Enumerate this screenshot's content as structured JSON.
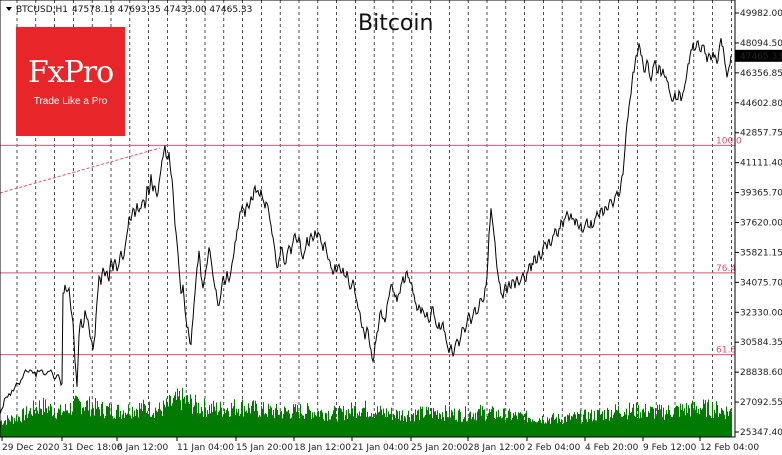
{
  "header": {
    "symbol": "BTCUSD,H1",
    "ohlc": "47578.18 47693.35 47433.00 47465.33"
  },
  "logo": {
    "brand": "FxPro",
    "tagline": "Trade Like a Pro"
  },
  "colors": {
    "price_line": "#000000",
    "volume": "#007a00",
    "fib_lines": "#e05070",
    "trend_line": "#e05070",
    "grid": "#000000",
    "current_price_box": "#000000",
    "logo_bg": "#e8262a"
  },
  "chart_data": {
    "type": "line",
    "title": "Bitcoin",
    "grid": true,
    "price_scale": "right",
    "ylim": [
      25347.4,
      49982.0
    ],
    "y_ticks": [
      "49982.00",
      "48094.50",
      "46356.85",
      "44602.80",
      "42857.75",
      "41111.40",
      "39365.70",
      "37620.00",
      "35821.15",
      "34075.70",
      "32330.00",
      "30584.35",
      "28838.60",
      "27092.55",
      "25347.40"
    ],
    "x_ticks": [
      "29 Dec 2020",
      "31 Dec 18:00",
      "6 Jan 12:00",
      "11 Jan 04:00",
      "15 Jan 20:00",
      "18 Jan 12:00",
      "21 Jan 04:00",
      "25 Jan 20:00",
      "28 Jan 12:00",
      "2 Feb 04:00",
      "4 Feb 20:00",
      "9 Feb 12:00",
      "12 Feb 04:00"
    ],
    "current_price": "47465.33",
    "fib_levels": [
      {
        "label": "100.0",
        "value": 42200
      },
      {
        "label": "76.4",
        "value": 34700
      },
      {
        "label": "61.8",
        "value": 29900
      }
    ],
    "price_points": [
      [
        0,
        26400
      ],
      [
        3,
        26800
      ],
      [
        6,
        27400
      ],
      [
        9,
        27600
      ],
      [
        12,
        27800
      ],
      [
        15,
        28000
      ],
      [
        18,
        28200
      ],
      [
        21,
        28400
      ],
      [
        24,
        28800
      ],
      [
        27,
        28900
      ],
      [
        30,
        29000
      ],
      [
        33,
        28800
      ],
      [
        36,
        28600
      ],
      [
        39,
        28900
      ],
      [
        42,
        29000
      ],
      [
        45,
        28700
      ],
      [
        48,
        28900
      ],
      [
        51,
        29000
      ],
      [
        54,
        28500
      ],
      [
        57,
        28700
      ],
      [
        60,
        28400
      ],
      [
        62,
        28200
      ],
      [
        63,
        33500
      ],
      [
        65,
        34000
      ],
      [
        67,
        33600
      ],
      [
        69,
        33800
      ],
      [
        71,
        32500
      ],
      [
        73,
        31800
      ],
      [
        75,
        29500
      ],
      [
        77,
        28000
      ],
      [
        79,
        31000
      ],
      [
        81,
        32000
      ],
      [
        83,
        31500
      ],
      [
        85,
        32500
      ],
      [
        87,
        32000
      ],
      [
        89,
        31500
      ],
      [
        91,
        30800
      ],
      [
        93,
        30200
      ],
      [
        95,
        31000
      ],
      [
        97,
        33000
      ],
      [
        99,
        34500
      ],
      [
        101,
        34000
      ],
      [
        103,
        35000
      ],
      [
        105,
        34500
      ],
      [
        107,
        34800
      ],
      [
        109,
        34200
      ],
      [
        111,
        35500
      ],
      [
        113,
        34800
      ],
      [
        115,
        35500
      ],
      [
        117,
        34800
      ],
      [
        119,
        35200
      ],
      [
        121,
        36000
      ],
      [
        123,
        35500
      ],
      [
        125,
        36200
      ],
      [
        127,
        37000
      ],
      [
        129,
        38000
      ],
      [
        131,
        37800
      ],
      [
        133,
        38500
      ],
      [
        135,
        38000
      ],
      [
        137,
        38800
      ],
      [
        139,
        38300
      ],
      [
        141,
        38500
      ],
      [
        143,
        39000
      ],
      [
        145,
        38500
      ],
      [
        147,
        39800
      ],
      [
        149,
        39300
      ],
      [
        151,
        40500
      ],
      [
        153,
        39500
      ],
      [
        155,
        39800
      ],
      [
        157,
        39200
      ],
      [
        159,
        40000
      ],
      [
        161,
        40800
      ],
      [
        163,
        41500
      ],
      [
        165,
        42200
      ],
      [
        167,
        41400
      ],
      [
        169,
        41800
      ],
      [
        171,
        40500
      ],
      [
        173,
        39500
      ],
      [
        175,
        37500
      ],
      [
        177,
        36500
      ],
      [
        179,
        35000
      ],
      [
        181,
        33500
      ],
      [
        183,
        34000
      ],
      [
        185,
        32500
      ],
      [
        187,
        31500
      ],
      [
        189,
        31000
      ],
      [
        191,
        30500
      ],
      [
        193,
        32000
      ],
      [
        195,
        33500
      ],
      [
        197,
        35000
      ],
      [
        199,
        36000
      ],
      [
        201,
        34500
      ],
      [
        203,
        33800
      ],
      [
        205,
        34500
      ],
      [
        207,
        35200
      ],
      [
        209,
        36200
      ],
      [
        211,
        35500
      ],
      [
        213,
        34500
      ],
      [
        215,
        33800
      ],
      [
        217,
        33200
      ],
      [
        219,
        32800
      ],
      [
        221,
        33500
      ],
      [
        223,
        34500
      ],
      [
        225,
        34000
      ],
      [
        227,
        34800
      ],
      [
        229,
        34200
      ],
      [
        231,
        34800
      ],
      [
        233,
        35500
      ],
      [
        235,
        36500
      ],
      [
        237,
        37200
      ],
      [
        239,
        37800
      ],
      [
        241,
        38300
      ],
      [
        243,
        38500
      ],
      [
        245,
        38000
      ],
      [
        247,
        38800
      ],
      [
        249,
        38500
      ],
      [
        251,
        39200
      ],
      [
        253,
        39000
      ],
      [
        255,
        39800
      ],
      [
        257,
        39500
      ],
      [
        259,
        39300
      ],
      [
        261,
        39600
      ],
      [
        263,
        39000
      ],
      [
        265,
        38500
      ],
      [
        267,
        38800
      ],
      [
        269,
        38200
      ],
      [
        271,
        37500
      ],
      [
        273,
        36800
      ],
      [
        275,
        36000
      ],
      [
        277,
        35000
      ],
      [
        279,
        35500
      ],
      [
        281,
        36200
      ],
      [
        283,
        35800
      ],
      [
        285,
        35200
      ],
      [
        287,
        35800
      ],
      [
        289,
        36300
      ],
      [
        291,
        35800
      ],
      [
        293,
        36500
      ],
      [
        295,
        37000
      ],
      [
        297,
        36500
      ],
      [
        299,
        36800
      ],
      [
        301,
        36000
      ],
      [
        303,
        35500
      ],
      [
        305,
        36000
      ],
      [
        307,
        36800
      ],
      [
        309,
        36300
      ],
      [
        311,
        37000
      ],
      [
        313,
        36600
      ],
      [
        315,
        37200
      ],
      [
        317,
        36800
      ],
      [
        319,
        37000
      ],
      [
        321,
        36500
      ],
      [
        323,
        36000
      ],
      [
        325,
        36500
      ],
      [
        327,
        35800
      ],
      [
        329,
        35500
      ],
      [
        331,
        35000
      ],
      [
        333,
        34600
      ],
      [
        335,
        35200
      ],
      [
        337,
        34800
      ],
      [
        339,
        35200
      ],
      [
        341,
        34700
      ],
      [
        343,
        35000
      ],
      [
        345,
        34500
      ],
      [
        347,
        34800
      ],
      [
        349,
        34000
      ],
      [
        351,
        33800
      ],
      [
        353,
        34300
      ],
      [
        355,
        33500
      ],
      [
        357,
        33000
      ],
      [
        359,
        32500
      ],
      [
        361,
        31800
      ],
      [
        363,
        31500
      ],
      [
        365,
        30800
      ],
      [
        367,
        31500
      ],
      [
        369,
        30800
      ],
      [
        371,
        30200
      ],
      [
        373,
        29500
      ],
      [
        375,
        30500
      ],
      [
        377,
        31200
      ],
      [
        379,
        31800
      ],
      [
        381,
        32500
      ],
      [
        383,
        32000
      ],
      [
        385,
        31800
      ],
      [
        387,
        32800
      ],
      [
        389,
        33300
      ],
      [
        391,
        34000
      ],
      [
        393,
        33600
      ],
      [
        395,
        33300
      ],
      [
        397,
        33000
      ],
      [
        399,
        33500
      ],
      [
        401,
        34000
      ],
      [
        403,
        34500
      ],
      [
        405,
        34200
      ],
      [
        407,
        34800
      ],
      [
        409,
        34400
      ],
      [
        411,
        34100
      ],
      [
        413,
        33500
      ],
      [
        415,
        33000
      ],
      [
        417,
        32500
      ],
      [
        419,
        32800
      ],
      [
        421,
        32300
      ],
      [
        423,
        32500
      ],
      [
        425,
        32100
      ],
      [
        427,
        32400
      ],
      [
        429,
        31800
      ],
      [
        431,
        32300
      ],
      [
        433,
        32700
      ],
      [
        435,
        32000
      ],
      [
        437,
        31500
      ],
      [
        439,
        31800
      ],
      [
        441,
        31400
      ],
      [
        443,
        31800
      ],
      [
        445,
        31200
      ],
      [
        447,
        30500
      ],
      [
        449,
        30000
      ],
      [
        451,
        30500
      ],
      [
        453,
        29800
      ],
      [
        455,
        30400
      ],
      [
        457,
        30800
      ],
      [
        459,
        30400
      ],
      [
        461,
        31000
      ],
      [
        463,
        31500
      ],
      [
        465,
        31200
      ],
      [
        467,
        31800
      ],
      [
        469,
        32300
      ],
      [
        471,
        31700
      ],
      [
        473,
        32200
      ],
      [
        475,
        32700
      ],
      [
        477,
        32300
      ],
      [
        479,
        32700
      ],
      [
        481,
        33200
      ],
      [
        483,
        33000
      ],
      [
        485,
        33800
      ],
      [
        487,
        34500
      ],
      [
        489,
        37000
      ],
      [
        491,
        38500
      ],
      [
        493,
        37500
      ],
      [
        495,
        36500
      ],
      [
        497,
        35000
      ],
      [
        499,
        34200
      ],
      [
        501,
        33500
      ],
      [
        503,
        33200
      ],
      [
        505,
        34000
      ],
      [
        507,
        33500
      ],
      [
        509,
        34200
      ],
      [
        511,
        33800
      ],
      [
        513,
        34300
      ],
      [
        515,
        33800
      ],
      [
        517,
        34500
      ],
      [
        519,
        34000
      ],
      [
        521,
        34300
      ],
      [
        523,
        34700
      ],
      [
        525,
        34200
      ],
      [
        527,
        34700
      ],
      [
        529,
        35200
      ],
      [
        531,
        34800
      ],
      [
        533,
        35200
      ],
      [
        535,
        35700
      ],
      [
        537,
        35300
      ],
      [
        539,
        36000
      ],
      [
        541,
        35500
      ],
      [
        543,
        36200
      ],
      [
        545,
        36500
      ],
      [
        547,
        36100
      ],
      [
        549,
        36700
      ],
      [
        551,
        36300
      ],
      [
        553,
        36900
      ],
      [
        555,
        37300
      ],
      [
        557,
        36900
      ],
      [
        559,
        37300
      ],
      [
        561,
        37800
      ],
      [
        563,
        37400
      ],
      [
        565,
        37900
      ],
      [
        567,
        38300
      ],
      [
        569,
        37800
      ],
      [
        571,
        38200
      ],
      [
        573,
        37900
      ],
      [
        575,
        37500
      ],
      [
        577,
        37800
      ],
      [
        579,
        37300
      ],
      [
        581,
        37600
      ],
      [
        583,
        37100
      ],
      [
        585,
        37500
      ],
      [
        587,
        37900
      ],
      [
        589,
        37400
      ],
      [
        591,
        37800
      ],
      [
        593,
        37400
      ],
      [
        595,
        37900
      ],
      [
        597,
        38300
      ],
      [
        599,
        38000
      ],
      [
        601,
        38500
      ],
      [
        603,
        38100
      ],
      [
        605,
        38600
      ],
      [
        607,
        38400
      ],
      [
        609,
        38800
      ],
      [
        611,
        39000
      ],
      [
        613,
        38600
      ],
      [
        615,
        39200
      ],
      [
        617,
        39500
      ],
      [
        619,
        39200
      ],
      [
        621,
        40000
      ],
      [
        623,
        40500
      ],
      [
        625,
        42000
      ],
      [
        627,
        43500
      ],
      [
        629,
        44500
      ],
      [
        631,
        45200
      ],
      [
        633,
        46500
      ],
      [
        635,
        47000
      ],
      [
        637,
        47500
      ],
      [
        639,
        48200
      ],
      [
        641,
        47500
      ],
      [
        643,
        47000
      ],
      [
        645,
        46500
      ],
      [
        647,
        47200
      ],
      [
        649,
        46500
      ],
      [
        651,
        46000
      ],
      [
        653,
        46800
      ],
      [
        655,
        47200
      ],
      [
        657,
        46500
      ],
      [
        659,
        46900
      ],
      [
        661,
        46300
      ],
      [
        663,
        46700
      ],
      [
        665,
        46200
      ],
      [
        667,
        46000
      ],
      [
        669,
        45500
      ],
      [
        671,
        45000
      ],
      [
        673,
        44800
      ],
      [
        675,
        45300
      ],
      [
        677,
        44900
      ],
      [
        679,
        45400
      ],
      [
        681,
        44800
      ],
      [
        683,
        45300
      ],
      [
        685,
        45800
      ],
      [
        687,
        46500
      ],
      [
        689,
        47000
      ],
      [
        691,
        47800
      ],
      [
        693,
        48200
      ],
      [
        695,
        47800
      ],
      [
        697,
        48300
      ],
      [
        699,
        48000
      ],
      [
        701,
        47700
      ],
      [
        703,
        48100
      ],
      [
        705,
        47600
      ],
      [
        707,
        47100
      ],
      [
        709,
        47600
      ],
      [
        711,
        47200
      ],
      [
        713,
        47700
      ],
      [
        715,
        47500
      ],
      [
        717,
        47000
      ],
      [
        719,
        47800
      ],
      [
        721,
        48500
      ],
      [
        723,
        48000
      ],
      [
        725,
        47000
      ],
      [
        727,
        46200
      ],
      [
        729,
        46800
      ],
      [
        731,
        47465
      ]
    ],
    "volume_points": [
      [
        0,
        0.35
      ],
      [
        20,
        0.45
      ],
      [
        40,
        0.7
      ],
      [
        60,
        0.55
      ],
      [
        80,
        0.75
      ],
      [
        100,
        0.62
      ],
      [
        120,
        0.58
      ],
      [
        140,
        0.65
      ],
      [
        160,
        0.6
      ],
      [
        180,
        0.85
      ],
      [
        200,
        0.66
      ],
      [
        220,
        0.62
      ],
      [
        240,
        0.68
      ],
      [
        260,
        0.6
      ],
      [
        280,
        0.55
      ],
      [
        300,
        0.58
      ],
      [
        320,
        0.55
      ],
      [
        340,
        0.52
      ],
      [
        360,
        0.65
      ],
      [
        380,
        0.55
      ],
      [
        400,
        0.5
      ],
      [
        420,
        0.52
      ],
      [
        440,
        0.55
      ],
      [
        460,
        0.5
      ],
      [
        480,
        0.55
      ],
      [
        500,
        0.5
      ],
      [
        520,
        0.45
      ],
      [
        540,
        0.42
      ],
      [
        560,
        0.4
      ],
      [
        580,
        0.45
      ],
      [
        600,
        0.5
      ],
      [
        620,
        0.6
      ],
      [
        640,
        0.58
      ],
      [
        660,
        0.55
      ],
      [
        680,
        0.6
      ],
      [
        700,
        0.65
      ],
      [
        720,
        0.6
      ],
      [
        731,
        0.55
      ]
    ]
  }
}
